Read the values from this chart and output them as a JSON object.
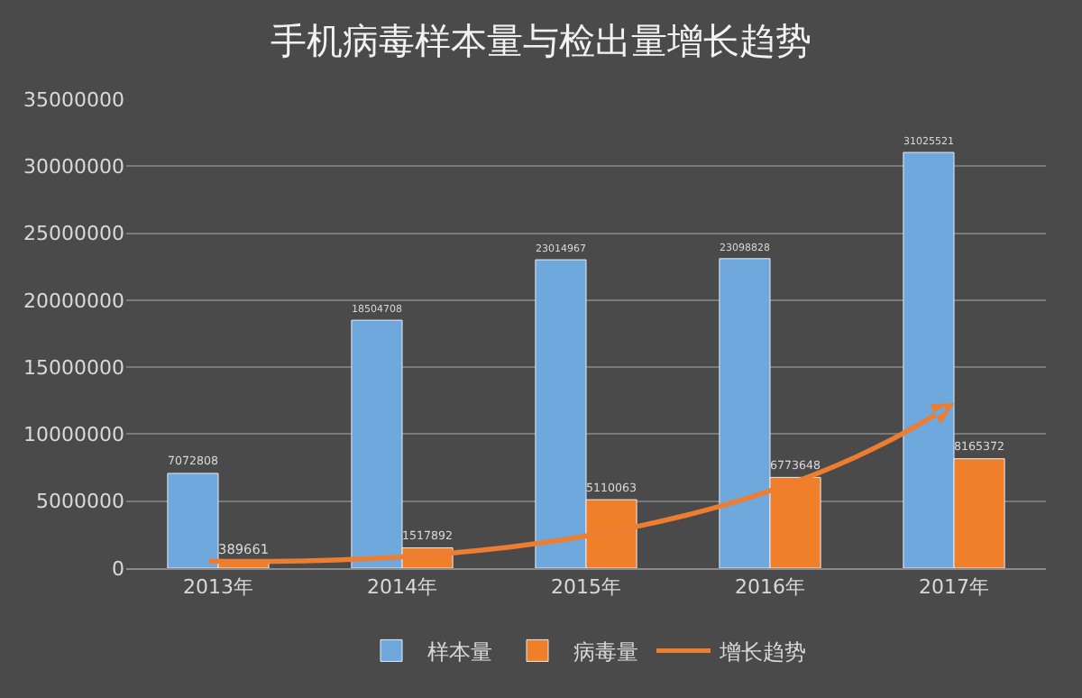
{
  "chart_data": {
    "type": "bar",
    "title": "手机病毒样本量与检出量增长趋势",
    "categories": [
      "2013年",
      "2014年",
      "2015年",
      "2016年",
      "2017年"
    ],
    "series": [
      {
        "name": "样本量",
        "color": "#6fa8dc",
        "values": [
          7072808,
          18504708,
          23014967,
          23098828,
          31025521
        ]
      },
      {
        "name": "病毒量",
        "color": "#f07f2a",
        "values": [
          389661,
          1517892,
          5110063,
          6773648,
          8165372
        ]
      }
    ],
    "annotations": [
      "增长趋势"
    ],
    "ylim": [
      0,
      35000000
    ],
    "yticks": [
      0,
      5000000,
      10000000,
      15000000,
      20000000,
      25000000,
      30000000,
      35000000
    ],
    "grid": "y",
    "legend": "bottom",
    "data_labels": true
  }
}
